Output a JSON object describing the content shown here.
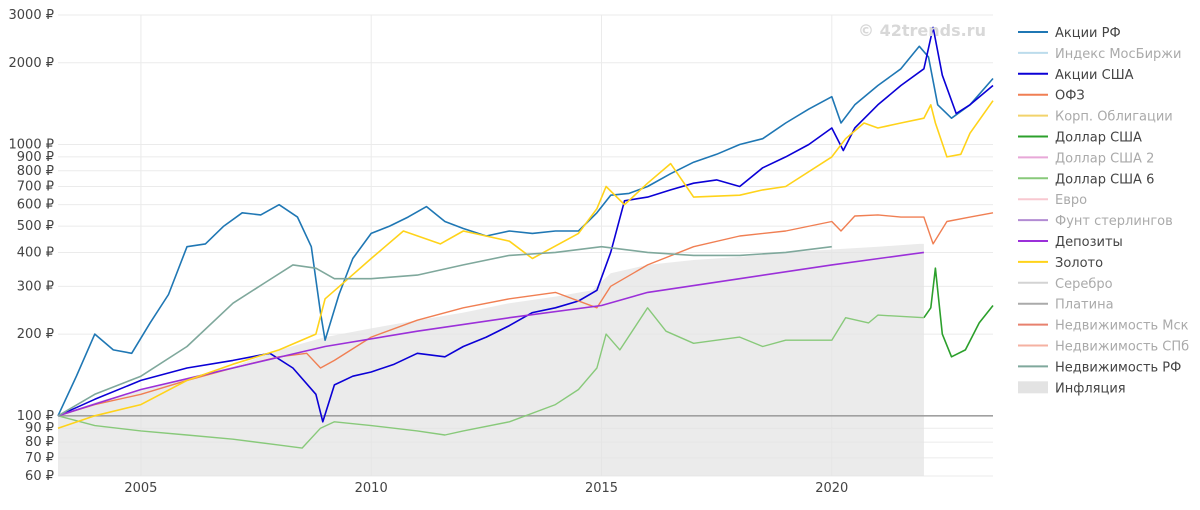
{
  "watermark": "© 42trends.ru",
  "chart_data": {
    "type": "line",
    "y_scale": "log",
    "y_unit": "₽",
    "ylim": [
      60,
      3000
    ],
    "xlim": [
      2003.2,
      2023.5
    ],
    "y_ticks": [
      {
        "v": 60,
        "label": "60 ₽"
      },
      {
        "v": 70,
        "label": "70 ₽"
      },
      {
        "v": 80,
        "label": "80 ₽"
      },
      {
        "v": 90,
        "label": "90 ₽"
      },
      {
        "v": 100,
        "label": "100 ₽"
      },
      {
        "v": 200,
        "label": "200 ₽"
      },
      {
        "v": 300,
        "label": "300 ₽"
      },
      {
        "v": 400,
        "label": "400 ₽"
      },
      {
        "v": 500,
        "label": "500 ₽"
      },
      {
        "v": 600,
        "label": "600 ₽"
      },
      {
        "v": 700,
        "label": "700 ₽"
      },
      {
        "v": 800,
        "label": "800 ₽"
      },
      {
        "v": 900,
        "label": "900 ₽"
      },
      {
        "v": 1000,
        "label": "1000 ₽"
      },
      {
        "v": 2000,
        "label": "2000 ₽"
      },
      {
        "v": 3000,
        "label": "3000 ₽"
      }
    ],
    "x_ticks": [
      {
        "v": 2005,
        "label": "2005"
      },
      {
        "v": 2010,
        "label": "2010"
      },
      {
        "v": 2015,
        "label": "2015"
      },
      {
        "v": 2020,
        "label": "2020"
      }
    ],
    "baseline": 100,
    "grid": true,
    "legend_position": "right",
    "series": [
      {
        "name": "Акции РФ",
        "color": "#1f77b4",
        "visible": true,
        "kind": "line",
        "width": 1.6,
        "x": [
          2003.2,
          2003.6,
          2004.0,
          2004.4,
          2004.8,
          2005.2,
          2005.6,
          2006.0,
          2006.4,
          2006.8,
          2007.2,
          2007.6,
          2008.0,
          2008.4,
          2008.7,
          2008.9,
          2009.0,
          2009.3,
          2009.6,
          2010.0,
          2010.4,
          2010.8,
          2011.2,
          2011.6,
          2012.0,
          2012.5,
          2013.0,
          2013.5,
          2014.0,
          2014.5,
          2014.9,
          2015.2,
          2015.6,
          2016.0,
          2016.5,
          2017.0,
          2017.5,
          2018.0,
          2018.5,
          2019.0,
          2019.5,
          2020.0,
          2020.2,
          2020.5,
          2021.0,
          2021.5,
          2021.9,
          2022.1,
          2022.3,
          2022.6,
          2023.0,
          2023.5
        ],
        "y": [
          100,
          140,
          200,
          175,
          170,
          220,
          280,
          420,
          430,
          500,
          560,
          550,
          600,
          540,
          420,
          240,
          190,
          280,
          380,
          470,
          500,
          540,
          590,
          520,
          490,
          460,
          480,
          470,
          480,
          480,
          560,
          650,
          660,
          700,
          780,
          860,
          920,
          1000,
          1050,
          1200,
          1350,
          1500,
          1200,
          1400,
          1650,
          1900,
          2300,
          2100,
          1400,
          1250,
          1400,
          1750
        ]
      },
      {
        "name": "Индекс МосБиржи",
        "color": "#bcdcec",
        "visible": false
      },
      {
        "name": "Акции США",
        "color": "#0b00d6",
        "visible": true,
        "kind": "line",
        "width": 1.6,
        "x": [
          2003.2,
          2004.0,
          2005.0,
          2006.0,
          2007.0,
          2007.8,
          2008.3,
          2008.8,
          2008.95,
          2009.2,
          2009.6,
          2010.0,
          2010.5,
          2011.0,
          2011.6,
          2012.0,
          2012.5,
          2013.0,
          2013.5,
          2014.0,
          2014.5,
          2014.9,
          2015.2,
          2015.5,
          2016.0,
          2016.5,
          2017.0,
          2017.5,
          2018.0,
          2018.5,
          2019.0,
          2019.5,
          2020.0,
          2020.25,
          2020.5,
          2021.0,
          2021.5,
          2022.0,
          2022.2,
          2022.4,
          2022.7,
          2023.0,
          2023.5
        ],
        "y": [
          100,
          115,
          135,
          150,
          160,
          170,
          150,
          120,
          95,
          130,
          140,
          145,
          155,
          170,
          165,
          180,
          195,
          215,
          240,
          250,
          265,
          290,
          400,
          620,
          640,
          680,
          720,
          740,
          700,
          820,
          900,
          1000,
          1150,
          950,
          1150,
          1400,
          1650,
          1900,
          2700,
          1800,
          1300,
          1400,
          1650
        ]
      },
      {
        "name": "ОФЗ",
        "color": "#f07f53",
        "visible": true,
        "kind": "line",
        "width": 1.4,
        "x": [
          2003.2,
          2004.0,
          2005.0,
          2006.0,
          2007.0,
          2008.0,
          2008.6,
          2008.9,
          2009.2,
          2010.0,
          2011.0,
          2012.0,
          2013.0,
          2014.0,
          2014.9,
          2015.2,
          2016.0,
          2017.0,
          2018.0,
          2019.0,
          2020.0,
          2020.2,
          2020.5,
          2021.0,
          2021.5,
          2022.0,
          2022.2,
          2022.5,
          2023.0,
          2023.5
        ],
        "y": [
          100,
          110,
          120,
          135,
          150,
          165,
          170,
          150,
          160,
          195,
          225,
          250,
          270,
          285,
          250,
          300,
          360,
          420,
          460,
          480,
          520,
          480,
          545,
          550,
          540,
          540,
          430,
          520,
          540,
          560
        ]
      },
      {
        "name": "Корп. Облигации",
        "color": "#f2d36b",
        "visible": false
      },
      {
        "name": "Доллар США",
        "color": "#2ca02c",
        "visible": true,
        "kind": "line",
        "width": 1.6,
        "x": [
          2022.0,
          2022.15,
          2022.25,
          2022.4,
          2022.6,
          2022.9,
          2023.2,
          2023.5
        ],
        "y": [
          230,
          250,
          350,
          200,
          165,
          175,
          220,
          255
        ]
      },
      {
        "name": "Доллар США 2",
        "color": "#e8a8d8",
        "visible": false
      },
      {
        "name": "Доллар США 6",
        "color": "#88c97a",
        "visible": true,
        "kind": "line",
        "width": 1.4,
        "x": [
          2003.2,
          2004.0,
          2005.0,
          2006.0,
          2007.0,
          2008.0,
          2008.5,
          2008.9,
          2009.2,
          2010.0,
          2011.0,
          2011.6,
          2012.0,
          2013.0,
          2014.0,
          2014.5,
          2014.9,
          2015.1,
          2015.4,
          2016.0,
          2016.4,
          2017.0,
          2018.0,
          2018.5,
          2019.0,
          2020.0,
          2020.3,
          2020.8,
          2021.0,
          2022.0
        ],
        "y": [
          100,
          92,
          88,
          85,
          82,
          78,
          76,
          90,
          95,
          92,
          88,
          85,
          88,
          95,
          110,
          125,
          150,
          200,
          175,
          250,
          205,
          185,
          195,
          180,
          190,
          190,
          230,
          220,
          235,
          230
        ]
      },
      {
        "name": "Евро",
        "color": "#f8c8d0",
        "visible": false
      },
      {
        "name": "Фунт стерлингов",
        "color": "#b28bd3",
        "visible": false
      },
      {
        "name": "Депозиты",
        "color": "#9b30d9",
        "visible": true,
        "kind": "line",
        "width": 1.6,
        "x": [
          2003.2,
          2005.0,
          2007.0,
          2009.0,
          2011.0,
          2013.0,
          2015.0,
          2016.0,
          2018.0,
          2020.0,
          2022.0
        ],
        "y": [
          100,
          125,
          150,
          180,
          205,
          230,
          255,
          285,
          320,
          360,
          400
        ]
      },
      {
        "name": "Золото",
        "color": "#ffd31a",
        "visible": true,
        "kind": "line",
        "width": 1.6,
        "x": [
          2003.2,
          2004.0,
          2005.0,
          2006.0,
          2007.0,
          2008.0,
          2008.8,
          2009.0,
          2009.5,
          2010.0,
          2010.7,
          2011.5,
          2012.0,
          2013.0,
          2013.5,
          2014.5,
          2014.9,
          2015.1,
          2015.5,
          2016.0,
          2016.5,
          2017.0,
          2018.0,
          2018.5,
          2019.0,
          2020.0,
          2020.3,
          2020.7,
          2021.0,
          2021.5,
          2022.0,
          2022.15,
          2022.25,
          2022.5,
          2022.8,
          2023.0,
          2023.5
        ],
        "y": [
          90,
          100,
          110,
          135,
          155,
          175,
          200,
          270,
          320,
          380,
          480,
          430,
          480,
          440,
          380,
          470,
          580,
          700,
          600,
          720,
          850,
          640,
          650,
          680,
          700,
          900,
          1050,
          1200,
          1150,
          1200,
          1250,
          1400,
          1200,
          900,
          920,
          1100,
          1450
        ]
      },
      {
        "name": "Серебро",
        "color": "#d3d3d3",
        "visible": false
      },
      {
        "name": "Платина",
        "color": "#aaaaaa",
        "visible": false
      },
      {
        "name": "Недвижимость Мск",
        "color": "#e8816e",
        "visible": false
      },
      {
        "name": "Недвижимость СПб",
        "color": "#f5b1a2",
        "visible": false
      },
      {
        "name": "Недвижимость РФ",
        "color": "#7fa89c",
        "visible": true,
        "kind": "line",
        "width": 1.6,
        "x": [
          2003.2,
          2004.0,
          2005.0,
          2006.0,
          2007.0,
          2007.7,
          2008.3,
          2008.8,
          2009.2,
          2010.0,
          2011.0,
          2012.0,
          2013.0,
          2014.0,
          2015.0,
          2016.0,
          2017.0,
          2018.0,
          2019.0,
          2020.0
        ],
        "y": [
          100,
          120,
          140,
          180,
          260,
          310,
          360,
          350,
          320,
          320,
          330,
          360,
          390,
          400,
          420,
          400,
          390,
          390,
          400,
          420
        ]
      },
      {
        "name": "Инфляция",
        "color": "#e3e3e3",
        "visible": true,
        "kind": "area",
        "width": 0,
        "x": [
          2003.2,
          2004.0,
          2005.0,
          2006.0,
          2007.0,
          2008.0,
          2009.0,
          2010.0,
          2011.0,
          2012.0,
          2013.0,
          2014.0,
          2014.8,
          2015.2,
          2016.0,
          2017.0,
          2018.0,
          2019.0,
          2020.0,
          2021.0,
          2021.9,
          2022.0
        ],
        "y": [
          100,
          112,
          125,
          138,
          152,
          175,
          195,
          210,
          225,
          240,
          260,
          275,
          290,
          335,
          360,
          375,
          385,
          400,
          410,
          420,
          430,
          430
        ]
      }
    ]
  }
}
